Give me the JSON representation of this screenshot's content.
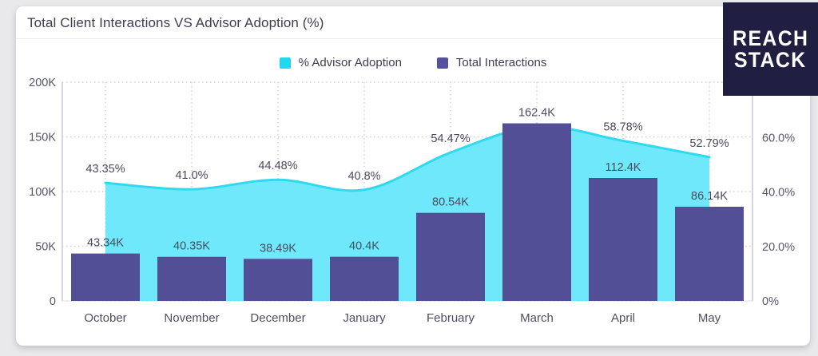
{
  "card": {
    "title": "Total Client Interactions VS Advisor Adoption (%)"
  },
  "legend": {
    "items": [
      {
        "label": "% Advisor Adoption",
        "color": "#22D8EF"
      },
      {
        "label": "Total Interactions",
        "color": "#57519D"
      }
    ]
  },
  "logo": {
    "line1": "REACH",
    "line2": "STACK",
    "bg": "#201F42",
    "text_color": "#FFFFFF"
  },
  "chart_data": {
    "type": "combo",
    "title": "Total Client Interactions VS Advisor Adoption (%)",
    "categories": [
      "October",
      "November",
      "December",
      "January",
      "February",
      "March",
      "April",
      "May"
    ],
    "series": [
      {
        "name": "% Advisor Adoption",
        "type": "area",
        "axis": "right",
        "line_color": "#2FD9EF",
        "fill_color": "#6FE8FB",
        "values": [
          43.35,
          41.0,
          44.48,
          40.8,
          54.47,
          64.0,
          58.78,
          52.79
        ],
        "point_labels": [
          "43.35%",
          "41.0%",
          "44.48%",
          "40.8%",
          "54.47%",
          "",
          "58.78%",
          "52.79%"
        ]
      },
      {
        "name": "Total Interactions",
        "type": "bar",
        "axis": "left",
        "color": "#534F96",
        "values": [
          43340,
          40350,
          38490,
          40400,
          80540,
          162400,
          112400,
          86140
        ],
        "point_labels": [
          "43.34K",
          "40.35K",
          "38.49K",
          "40.4K",
          "80.54K",
          "162.4K",
          "112.4K",
          "86.14K"
        ]
      }
    ],
    "left_axis": {
      "min": 0,
      "max": 200000,
      "ticks": [
        {
          "value": 0,
          "label": "0"
        },
        {
          "value": 50000,
          "label": "50K"
        },
        {
          "value": 100000,
          "label": "100K"
        },
        {
          "value": 150000,
          "label": "150K"
        },
        {
          "value": 200000,
          "label": "200K"
        }
      ]
    },
    "right_axis": {
      "min": 0,
      "max": 80.3,
      "ticks": [
        {
          "value": 0,
          "label": "0%"
        },
        {
          "value": 20,
          "label": "20.0%"
        },
        {
          "value": 40,
          "label": "40.0%"
        },
        {
          "value": 60,
          "label": "60.0%"
        }
      ]
    },
    "grid": "dotted",
    "legend_position": "top-center"
  }
}
